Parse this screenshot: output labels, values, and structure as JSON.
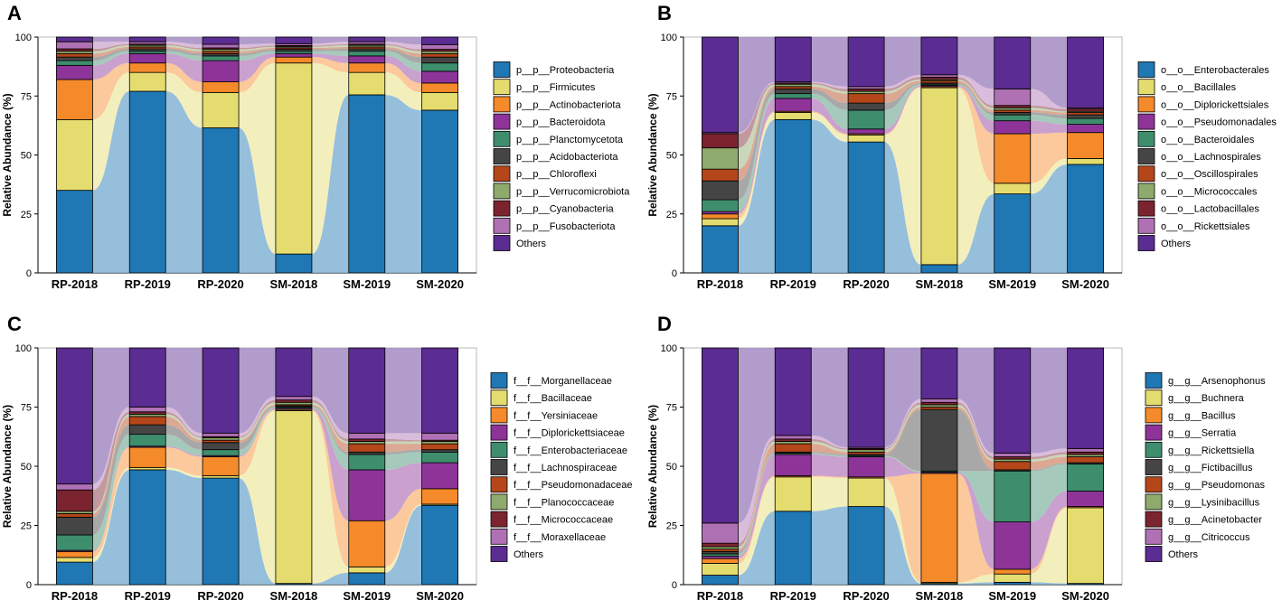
{
  "chart_data": [
    {
      "panel": "A",
      "type": "stacked-bar-alluvial",
      "ylabel": "Relative Abundance (%)",
      "ylim": [
        0,
        100
      ],
      "yticks": [
        "0",
        "25",
        "50",
        "75",
        "100"
      ],
      "categories": [
        "RP-2018",
        "RP-2019",
        "RP-2020",
        "SM-2018",
        "SM-2019",
        "SM-2020"
      ],
      "series": [
        {
          "name": "p__p__Proteobacteria",
          "color": "#1f77b4",
          "values": [
            35,
            77,
            61.5,
            8,
            75.5,
            69
          ]
        },
        {
          "name": "p__p__Firmicutes",
          "color": "#e5dc6f",
          "values": [
            30,
            8,
            15,
            81,
            9.5,
            7.5
          ]
        },
        {
          "name": "p__p__Actinobacteriota",
          "color": "#f58a2a",
          "values": [
            17,
            4,
            4.5,
            2.5,
            4,
            4
          ]
        },
        {
          "name": "p__p__Bacteroidota",
          "color": "#8e3499",
          "values": [
            6,
            4,
            9,
            1.5,
            3,
            5
          ]
        },
        {
          "name": "p__p__Planctomycetota",
          "color": "#3e8e6e",
          "values": [
            2,
            1,
            2,
            1,
            2,
            3.5
          ]
        },
        {
          "name": "p__p__Acidobacteriota",
          "color": "#454545",
          "values": [
            1.5,
            1,
            1,
            0.8,
            1,
            2.5
          ]
        },
        {
          "name": "p__p__Chloroflexi",
          "color": "#b5461a",
          "values": [
            1.5,
            0.8,
            1,
            0.6,
            0.8,
            1.5
          ]
        },
        {
          "name": "p__p__Verrucomicrobiota",
          "color": "#8eaa6c",
          "values": [
            1,
            0.7,
            0.8,
            0.5,
            0.7,
            1
          ]
        },
        {
          "name": "p__p__Cyanobacteria",
          "color": "#7b2430",
          "values": [
            1,
            0.5,
            0.6,
            0.5,
            0.5,
            0.8
          ]
        },
        {
          "name": "p__p__Fusobacteriota",
          "color": "#b071b4",
          "values": [
            3,
            1,
            1.5,
            0.8,
            1,
            2
          ]
        },
        {
          "name": "Others",
          "color": "#5b2c91",
          "values": [
            2,
            2,
            3.1,
            2.8,
            2,
            3.2
          ]
        }
      ]
    },
    {
      "panel": "B",
      "type": "stacked-bar-alluvial",
      "ylabel": "Relative Abundance (%)",
      "ylim": [
        0,
        100
      ],
      "yticks": [
        "0",
        "25",
        "50",
        "75",
        "100"
      ],
      "categories": [
        "RP-2018",
        "RP-2019",
        "RP-2020",
        "SM-2018",
        "SM-2019",
        "SM-2020"
      ],
      "series": [
        {
          "name": "o__o__Enterobacterales",
          "color": "#1f77b4",
          "values": [
            20,
            65,
            55.5,
            3.5,
            33.5,
            46
          ]
        },
        {
          "name": "o__o__Bacillales",
          "color": "#e5dc6f",
          "values": [
            3,
            3,
            3,
            75,
            4.5,
            2.5
          ]
        },
        {
          "name": "o__o__Diplorickettsiales",
          "color": "#f58a2a",
          "values": [
            2,
            0.5,
            0.5,
            0.5,
            21,
            11
          ]
        },
        {
          "name": "o__o__Pseudomonadales",
          "color": "#8e3499",
          "values": [
            1,
            5.5,
            2,
            0.5,
            5.5,
            3.5
          ]
        },
        {
          "name": "o__o__Bacteroidales",
          "color": "#3e8e6e",
          "values": [
            5,
            2,
            8,
            0.5,
            2.5,
            2.5
          ]
        },
        {
          "name": "o__o__Lachnospirales",
          "color": "#454545",
          "values": [
            8,
            2,
            3,
            0.5,
            1,
            1.5
          ]
        },
        {
          "name": "o__o__Oscillospirales",
          "color": "#b5461a",
          "values": [
            5,
            1,
            4,
            1,
            1,
            1
          ]
        },
        {
          "name": "o__o__Micrococcales",
          "color": "#8eaa6c",
          "values": [
            9,
            1,
            1,
            0.5,
            1,
            0.5
          ]
        },
        {
          "name": "o__o__Lactobacillales",
          "color": "#7b2430",
          "values": [
            6,
            0.5,
            1,
            1,
            1,
            1
          ]
        },
        {
          "name": "o__o__Rickettsiales",
          "color": "#b071b4",
          "values": [
            0.5,
            0.5,
            1,
            1,
            7,
            0.5
          ]
        },
        {
          "name": "Others",
          "color": "#5b2c91",
          "values": [
            40.5,
            19,
            21,
            16,
            22,
            30
          ]
        }
      ]
    },
    {
      "panel": "C",
      "type": "stacked-bar-alluvial",
      "ylabel": "Relative Abundance (%)",
      "ylim": [
        0,
        100
      ],
      "yticks": [
        "0",
        "25",
        "50",
        "75",
        "100"
      ],
      "categories": [
        "RP-2018",
        "RP-2019",
        "RP-2020",
        "SM-2018",
        "SM-2019",
        "SM-2020"
      ],
      "series": [
        {
          "name": "f__f__Morganellaceae",
          "color": "#1f77b4",
          "values": [
            9.5,
            48.5,
            45,
            0.5,
            5,
            33.5
          ]
        },
        {
          "name": "f__f__Bacillaceae",
          "color": "#e5dc6f",
          "values": [
            2,
            1,
            1,
            73,
            2.5,
            0.5
          ]
        },
        {
          "name": "f__f__Yersiniaceae",
          "color": "#f58a2a",
          "values": [
            2.5,
            8.5,
            8,
            0.5,
            19.5,
            6.5
          ]
        },
        {
          "name": "f__f__Diplorickettsiaceae",
          "color": "#8e3499",
          "values": [
            0.5,
            0.5,
            0.5,
            0.5,
            21.5,
            11
          ]
        },
        {
          "name": "f__f__Enterobacteriaceae",
          "color": "#3e8e6e",
          "values": [
            6.5,
            5,
            2.5,
            0.5,
            6.5,
            4.5
          ]
        },
        {
          "name": "f__f__Lachnospiraceae",
          "color": "#454545",
          "values": [
            7.5,
            4,
            3,
            0.5,
            1,
            1
          ]
        },
        {
          "name": "f__f__Pseudomonadaceae",
          "color": "#b5461a",
          "values": [
            1.5,
            3.5,
            1,
            0.5,
            3.5,
            2.5
          ]
        },
        {
          "name": "f__f__Planococcaceae",
          "color": "#8eaa6c",
          "values": [
            1,
            1,
            1,
            1,
            1,
            1
          ]
        },
        {
          "name": "f__f__Micrococcaceae",
          "color": "#7b2430",
          "values": [
            9,
            1,
            0.5,
            1,
            1,
            0.5
          ]
        },
        {
          "name": "f__f__Moraxellaceae",
          "color": "#b071b4",
          "values": [
            2.5,
            2,
            1.5,
            1.5,
            2.5,
            3
          ]
        },
        {
          "name": "Others",
          "color": "#5b2c91",
          "values": [
            57.5,
            25,
            36,
            20.5,
            36,
            36
          ]
        }
      ]
    },
    {
      "panel": "D",
      "type": "stacked-bar-alluvial",
      "ylabel": "Relative Abundance (%)",
      "ylim": [
        0,
        100
      ],
      "yticks": [
        "0",
        "25",
        "50",
        "75",
        "100"
      ],
      "categories": [
        "RP-2018",
        "RP-2019",
        "RP-2020",
        "SM-2018",
        "SM-2019",
        "SM-2020"
      ],
      "series": [
        {
          "name": "g__g__Arsenophonus",
          "color": "#1f77b4",
          "values": [
            4,
            31,
            33,
            0.5,
            1,
            0.5
          ]
        },
        {
          "name": "g__g__Buchnera",
          "color": "#e5dc6f",
          "values": [
            5,
            14.5,
            12,
            0.5,
            3.5,
            32
          ]
        },
        {
          "name": "g__g__Bacillus",
          "color": "#f58a2a",
          "values": [
            2,
            0.5,
            0.5,
            46,
            2,
            0.5
          ]
        },
        {
          "name": "g__g__Serratia",
          "color": "#8e3499",
          "values": [
            1,
            9,
            8.5,
            0.5,
            20,
            6.5
          ]
        },
        {
          "name": "g__g__Rickettsiella",
          "color": "#3e8e6e",
          "values": [
            1,
            0.5,
            0.5,
            0.5,
            21.5,
            11.5
          ]
        },
        {
          "name": "g__g__Fictibacillus",
          "color": "#454545",
          "values": [
            1,
            0.5,
            0.5,
            26,
            0.5,
            0.5
          ]
        },
        {
          "name": "g__g__Pseudomonas",
          "color": "#b5461a",
          "values": [
            1,
            3.5,
            1,
            1,
            3.5,
            2.5
          ]
        },
        {
          "name": "g__g__Lysinibacillus",
          "color": "#8eaa6c",
          "values": [
            1,
            1,
            1,
            1,
            1,
            1
          ]
        },
        {
          "name": "g__g__Acinetobacter",
          "color": "#7b2430",
          "values": [
            1.5,
            1,
            0.5,
            1,
            1,
            1
          ]
        },
        {
          "name": "g__g__Citricoccus",
          "color": "#b071b4",
          "values": [
            8.5,
            1.5,
            0.5,
            1.5,
            1.5,
            1.5
          ]
        },
        {
          "name": "Others",
          "color": "#5b2c91",
          "values": [
            74,
            37,
            42,
            21.5,
            44.5,
            42.5
          ]
        }
      ]
    }
  ]
}
